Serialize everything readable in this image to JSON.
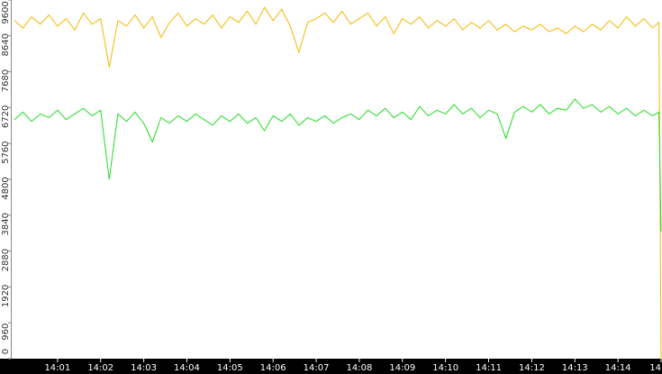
{
  "chart_data": {
    "type": "line",
    "x": [
      0,
      0.2,
      0.4,
      0.6,
      0.8,
      1,
      1.2,
      1.4,
      1.6,
      1.8,
      2,
      2.2,
      2.4,
      2.6,
      2.8,
      3,
      3.2,
      3.4,
      3.6,
      3.8,
      4,
      4.2,
      4.4,
      4.6,
      4.8,
      5,
      5.2,
      5.4,
      5.6,
      5.8,
      6,
      6.2,
      6.4,
      6.6,
      6.8,
      7,
      7.2,
      7.4,
      7.6,
      7.8,
      8,
      8.2,
      8.4,
      8.6,
      8.8,
      9,
      9.2,
      9.4,
      9.6,
      9.8,
      10,
      10.2,
      10.4,
      10.6,
      10.8,
      11,
      11.2,
      11.4,
      11.6,
      11.8,
      12,
      12.2,
      12.4,
      12.6,
      12.8,
      13,
      13.2,
      13.4,
      13.6,
      13.8,
      14,
      14.2,
      14.4,
      14.6,
      14.8,
      14.95,
      15
    ],
    "series": [
      {
        "color": "#f5b800",
        "values": [
          9050,
          8850,
          9150,
          8950,
          9200,
          8900,
          9100,
          8800,
          9250,
          8950,
          9100,
          7800,
          9050,
          8900,
          9200,
          8850,
          9150,
          8600,
          9000,
          9250,
          8900,
          9100,
          8950,
          9200,
          8850,
          9150,
          9000,
          9300,
          8950,
          9400,
          9050,
          9350,
          8900,
          8200,
          9000,
          9100,
          9250,
          9000,
          9300,
          8950,
          9100,
          9250,
          8900,
          9150,
          8700,
          9100,
          8950,
          9150,
          8850,
          9050,
          8900,
          9100,
          8800,
          9000,
          8850,
          9050,
          8800,
          8950,
          8750,
          8900,
          8800,
          8950,
          8750,
          8850,
          8700,
          8900,
          8750,
          8950,
          8800,
          9050,
          8850,
          9150,
          8900,
          9100,
          8850,
          9000,
          0
        ]
      },
      {
        "color": "#22dd22",
        "values": [
          6400,
          6600,
          6350,
          6550,
          6450,
          6650,
          6400,
          6550,
          6700,
          6500,
          6650,
          4800,
          6550,
          6350,
          6600,
          6300,
          5800,
          6450,
          6300,
          6500,
          6350,
          6550,
          6400,
          6250,
          6500,
          6350,
          6550,
          6300,
          6450,
          6100,
          6500,
          6350,
          6550,
          6250,
          6450,
          6350,
          6500,
          6300,
          6450,
          6550,
          6400,
          6650,
          6500,
          6700,
          6450,
          6600,
          6400,
          6750,
          6500,
          6650,
          6550,
          6800,
          6550,
          6700,
          6450,
          6650,
          6550,
          5900,
          6600,
          6750,
          6600,
          6800,
          6550,
          6700,
          6650,
          6950,
          6700,
          6800,
          6600,
          6750,
          6550,
          6700,
          6500,
          6650,
          6500,
          6600,
          3400
        ]
      }
    ],
    "xlim": [
      0,
      15
    ],
    "xticks": [
      {
        "value": 1,
        "label": "14:01"
      },
      {
        "value": 2,
        "label": "14:02"
      },
      {
        "value": 3,
        "label": "14:03"
      },
      {
        "value": 4,
        "label": "14:04"
      },
      {
        "value": 5,
        "label": "14:05"
      },
      {
        "value": 6,
        "label": "14:06"
      },
      {
        "value": 7,
        "label": "14:07"
      },
      {
        "value": 8,
        "label": "14:08"
      },
      {
        "value": 9,
        "label": "14:09"
      },
      {
        "value": 10,
        "label": "14:10"
      },
      {
        "value": 11,
        "label": "14:11"
      },
      {
        "value": 12,
        "label": "14:12"
      },
      {
        "value": 13,
        "label": "14:13"
      },
      {
        "value": 14,
        "label": "14:14"
      },
      {
        "value": 15,
        "label": "14"
      }
    ],
    "ylim": [
      0,
      9600
    ],
    "yticks": [
      0,
      960,
      1920,
      2880,
      3840,
      4800,
      5760,
      6720,
      7680,
      8640,
      9600
    ],
    "grid": false
  }
}
